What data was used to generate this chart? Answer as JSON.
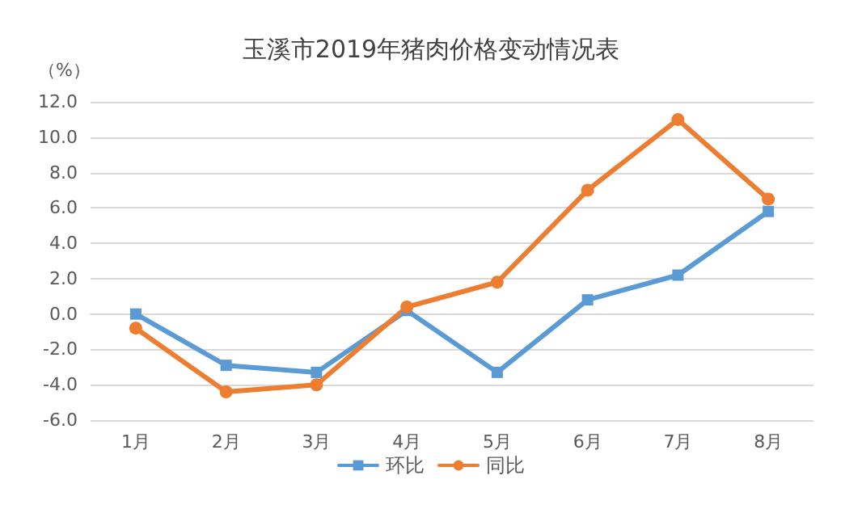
{
  "chart_data": {
    "type": "line",
    "title": "玉溪市2019年猪肉价格变动情况表",
    "ylabel": "（%）",
    "categories": [
      "1月",
      "2月",
      "3月",
      "4月",
      "5月",
      "6月",
      "7月",
      "8月"
    ],
    "series": [
      {
        "name": "环比",
        "color": "#5b9bd5",
        "marker": "square",
        "values": [
          0,
          -2.9,
          -3.3,
          0.2,
          -3.3,
          0.8,
          2.2,
          5.8
        ]
      },
      {
        "name": "同比",
        "color": "#ed7d31",
        "marker": "circle",
        "values": [
          -0.8,
          -4.4,
          -4.0,
          0.4,
          1.8,
          7.0,
          11.0,
          6.5
        ]
      }
    ],
    "ylim": [
      -6,
      12
    ],
    "yticks": [
      {
        "value": -6,
        "label": "-6.0"
      },
      {
        "value": -4,
        "label": "-4.0"
      },
      {
        "value": -2,
        "label": "-2.0"
      },
      {
        "value": 0,
        "label": "0.0"
      },
      {
        "value": 2,
        "label": "2.0"
      },
      {
        "value": 4,
        "label": "4.0"
      },
      {
        "value": 6,
        "label": "6.0"
      },
      {
        "value": 8,
        "label": "8.0"
      },
      {
        "value": 10,
        "label": "10.0"
      },
      {
        "value": 12,
        "label": "12.0"
      }
    ],
    "grid": "y",
    "legend": "bottom",
    "line_style": "solid"
  }
}
